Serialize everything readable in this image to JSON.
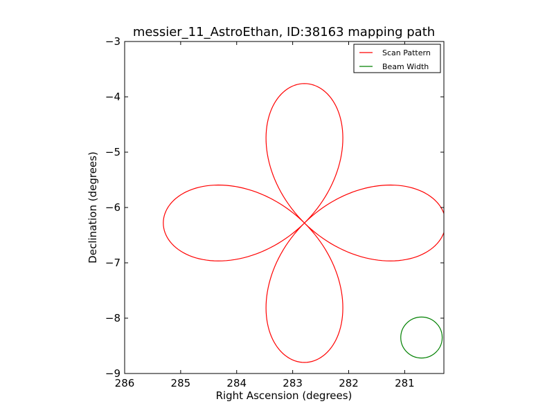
{
  "chart_data": {
    "type": "line",
    "title": "messier_11_AstroEthan, ID:38163 mapping path",
    "xlabel": "Right Ascension (degrees)",
    "ylabel": "Declination (degrees)",
    "xlim": [
      286,
      280.3
    ],
    "ylim": [
      -9,
      -3
    ],
    "x_inverted": true,
    "grid": false,
    "legend_placement": "top-right",
    "xticks": [
      286,
      285,
      284,
      283,
      282,
      281
    ],
    "xtick_labels": [
      "286",
      "285",
      "284",
      "283",
      "282",
      "281"
    ],
    "yticks": [
      -3,
      -4,
      -5,
      -6,
      -7,
      -8,
      -9
    ],
    "ytick_labels": [
      "−3",
      "−4",
      "−5",
      "−6",
      "−7",
      "−8",
      "−9"
    ],
    "series": [
      {
        "name": "Scan Pattern",
        "color": "#ff0000",
        "kind": "rose-path",
        "center": [
          282.79,
          -6.28
        ],
        "ra_amplitude": 2.52,
        "dec_amplitude": 2.52,
        "petals": 4,
        "orientation_deg": 0
      },
      {
        "name": "Beam Width",
        "color": "#008000",
        "kind": "circle",
        "center": [
          280.7,
          -8.35
        ],
        "radius_deg": 0.37
      }
    ]
  }
}
